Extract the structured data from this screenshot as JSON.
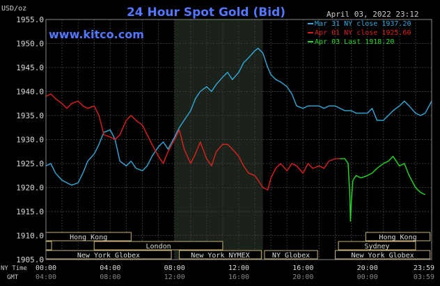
{
  "chart_data": {
    "type": "line",
    "title": "24 Hour Spot Gold (Bid)",
    "brand": "www.kitco.com",
    "unit_label": "USD/oz",
    "timestamp": "April 03, 2022 23:12",
    "ylim": [
      1905.0,
      1955.0
    ],
    "y_ticks": [
      1905.0,
      1910.0,
      1915.0,
      1920.0,
      1925.0,
      1930.0,
      1935.0,
      1940.0,
      1945.0,
      1950.0,
      1955.0
    ],
    "y_tick_labels": [
      "1905.0",
      "1910.0",
      "1915.0",
      "1920.0",
      "1925.0",
      "1930.0",
      "1935.0",
      "1940.0",
      "1945.0",
      "1950.0",
      "1955.0"
    ],
    "xlim": [
      0,
      24
    ],
    "x_ticks": [
      0,
      4,
      8,
      12,
      16,
      20,
      24
    ],
    "row_labels": {
      "ny_time": "NY Time",
      "gmt": "GMT"
    },
    "ny_time_labels": [
      "00:00",
      "04:00",
      "08:00",
      "12:00",
      "16:00",
      "20:00",
      "23:59"
    ],
    "gmt_labels": [
      "04:00",
      "08:00",
      "12:00",
      "16:00",
      "20:00",
      "00:00",
      "03:59"
    ],
    "highlight_range": [
      8.0,
      13.5
    ],
    "grid": true,
    "legend_placement": "top-right",
    "series": [
      {
        "name": "Mar 31 NY close 1937.20",
        "color": "#33aadd",
        "x": [
          0.0,
          0.3,
          0.6,
          1.0,
          1.3,
          1.6,
          2.0,
          2.3,
          2.6,
          3.0,
          3.3,
          3.6,
          4.0,
          4.3,
          4.6,
          5.0,
          5.3,
          5.6,
          6.0,
          6.3,
          6.6,
          7.0,
          7.3,
          7.6,
          8.0,
          8.3,
          8.6,
          9.0,
          9.3,
          9.6,
          10.0,
          10.3,
          10.6,
          11.0,
          11.3,
          11.6,
          12.0,
          12.3,
          12.6,
          13.0,
          13.2,
          13.5,
          13.8,
          14.0,
          14.3,
          14.6,
          15.0,
          15.3,
          15.6,
          16.0,
          16.3,
          16.6,
          17.0,
          17.3,
          17.6,
          18.0,
          18.3,
          18.6,
          19.0,
          19.3,
          19.6,
          20.0,
          20.3,
          20.6,
          21.0,
          21.3,
          21.6,
          22.0,
          22.3,
          22.6,
          23.0,
          23.3,
          23.6,
          24.0
        ],
        "y": [
          1924.5,
          1925.0,
          1923.0,
          1921.5,
          1921.0,
          1920.5,
          1921.0,
          1923.0,
          1925.5,
          1927.0,
          1929.0,
          1931.5,
          1932.0,
          1930.0,
          1925.5,
          1924.5,
          1925.5,
          1924.0,
          1923.5,
          1924.5,
          1926.5,
          1928.5,
          1929.5,
          1928.0,
          1930.5,
          1932.5,
          1934.0,
          1936.0,
          1938.5,
          1940.0,
          1941.0,
          1940.0,
          1941.5,
          1943.0,
          1944.0,
          1942.5,
          1944.0,
          1946.0,
          1947.0,
          1948.5,
          1949.0,
          1948.0,
          1945.0,
          1943.5,
          1942.5,
          1942.0,
          1941.0,
          1939.5,
          1937.0,
          1936.5,
          1937.0,
          1937.0,
          1937.0,
          1936.5,
          1937.0,
          1937.0,
          1936.5,
          1936.0,
          1936.0,
          1935.5,
          1935.5,
          1935.5,
          1936.5,
          1934.0,
          1934.0,
          1935.0,
          1936.0,
          1937.0,
          1938.0,
          1937.0,
          1935.5,
          1935.0,
          1935.5,
          1938.0
        ]
      },
      {
        "name": "Apr 01 NY close 1925.60",
        "color": "#dd2222",
        "x": [
          0.0,
          0.3,
          0.6,
          1.0,
          1.3,
          1.6,
          2.0,
          2.3,
          2.6,
          3.0,
          3.3,
          3.6,
          4.0,
          4.3,
          4.6,
          5.0,
          5.3,
          5.6,
          6.0,
          6.3,
          6.6,
          7.0,
          7.3,
          7.6,
          8.0,
          8.3,
          8.6,
          9.0,
          9.3,
          9.6,
          10.0,
          10.3,
          10.6,
          11.0,
          11.3,
          11.6,
          12.0,
          12.3,
          12.6,
          13.0,
          13.2,
          13.5,
          13.8,
          14.0,
          14.3,
          14.6,
          15.0,
          15.3,
          15.6,
          16.0,
          16.3,
          16.6,
          17.0,
          17.3,
          17.6,
          18.0,
          18.3
        ],
        "y": [
          1939.0,
          1939.5,
          1938.5,
          1937.5,
          1936.5,
          1937.5,
          1938.0,
          1937.0,
          1936.5,
          1937.0,
          1935.0,
          1931.0,
          1930.5,
          1930.0,
          1931.0,
          1934.0,
          1935.0,
          1934.0,
          1933.0,
          1931.0,
          1929.0,
          1926.5,
          1925.0,
          1927.5,
          1930.0,
          1932.0,
          1928.0,
          1925.0,
          1927.0,
          1929.5,
          1926.0,
          1924.5,
          1927.5,
          1929.0,
          1929.0,
          1928.0,
          1926.5,
          1924.5,
          1923.0,
          1922.5,
          1921.5,
          1920.0,
          1919.5,
          1922.0,
          1924.0,
          1925.0,
          1923.5,
          1925.0,
          1924.5,
          1923.0,
          1925.0,
          1924.0,
          1924.5,
          1924.0,
          1925.5,
          1926.0,
          1926.0
        ]
      },
      {
        "name": "Apr 03 Last 1918.20",
        "color": "#22dd22",
        "x": [
          18.3,
          18.6,
          18.8,
          18.9,
          18.95,
          19.0,
          19.1,
          19.3,
          19.6,
          20.0,
          20.3,
          20.6,
          21.0,
          21.3,
          21.6,
          22.0,
          22.3,
          22.6,
          23.0,
          23.3,
          23.6
        ],
        "y": [
          1926.0,
          1926.0,
          1925.0,
          1919.0,
          1913.0,
          1917.0,
          1921.5,
          1922.5,
          1922.0,
          1922.5,
          1923.0,
          1924.0,
          1925.0,
          1925.5,
          1926.5,
          1924.5,
          1925.0,
          1922.5,
          1920.0,
          1919.0,
          1918.5
        ]
      }
    ],
    "sessions": [
      {
        "label": "Hong Kong",
        "start": 0.0,
        "end": 5.3,
        "row": 0
      },
      {
        "label": "Hong Kong",
        "start": 19.9,
        "end": 23.9,
        "row": 0
      },
      {
        "label": "London",
        "start": 0.0,
        "end": 0.35,
        "row": 1
      },
      {
        "label": "London",
        "start": 3.0,
        "end": 11.0,
        "row": 1
      },
      {
        "label": "Sydney",
        "start": 18.2,
        "end": 23.0,
        "row": 2
      },
      {
        "label": "New York Globex",
        "start": 0.0,
        "end": 7.8,
        "row": 3
      },
      {
        "label": "New York NYMEX",
        "start": 8.3,
        "end": 13.4,
        "row": 3
      },
      {
        "label": "NY Globex",
        "start": 13.6,
        "end": 16.9,
        "row": 3
      },
      {
        "label": "New York Globex",
        "start": 18.0,
        "end": 23.9,
        "row": 3
      }
    ]
  }
}
